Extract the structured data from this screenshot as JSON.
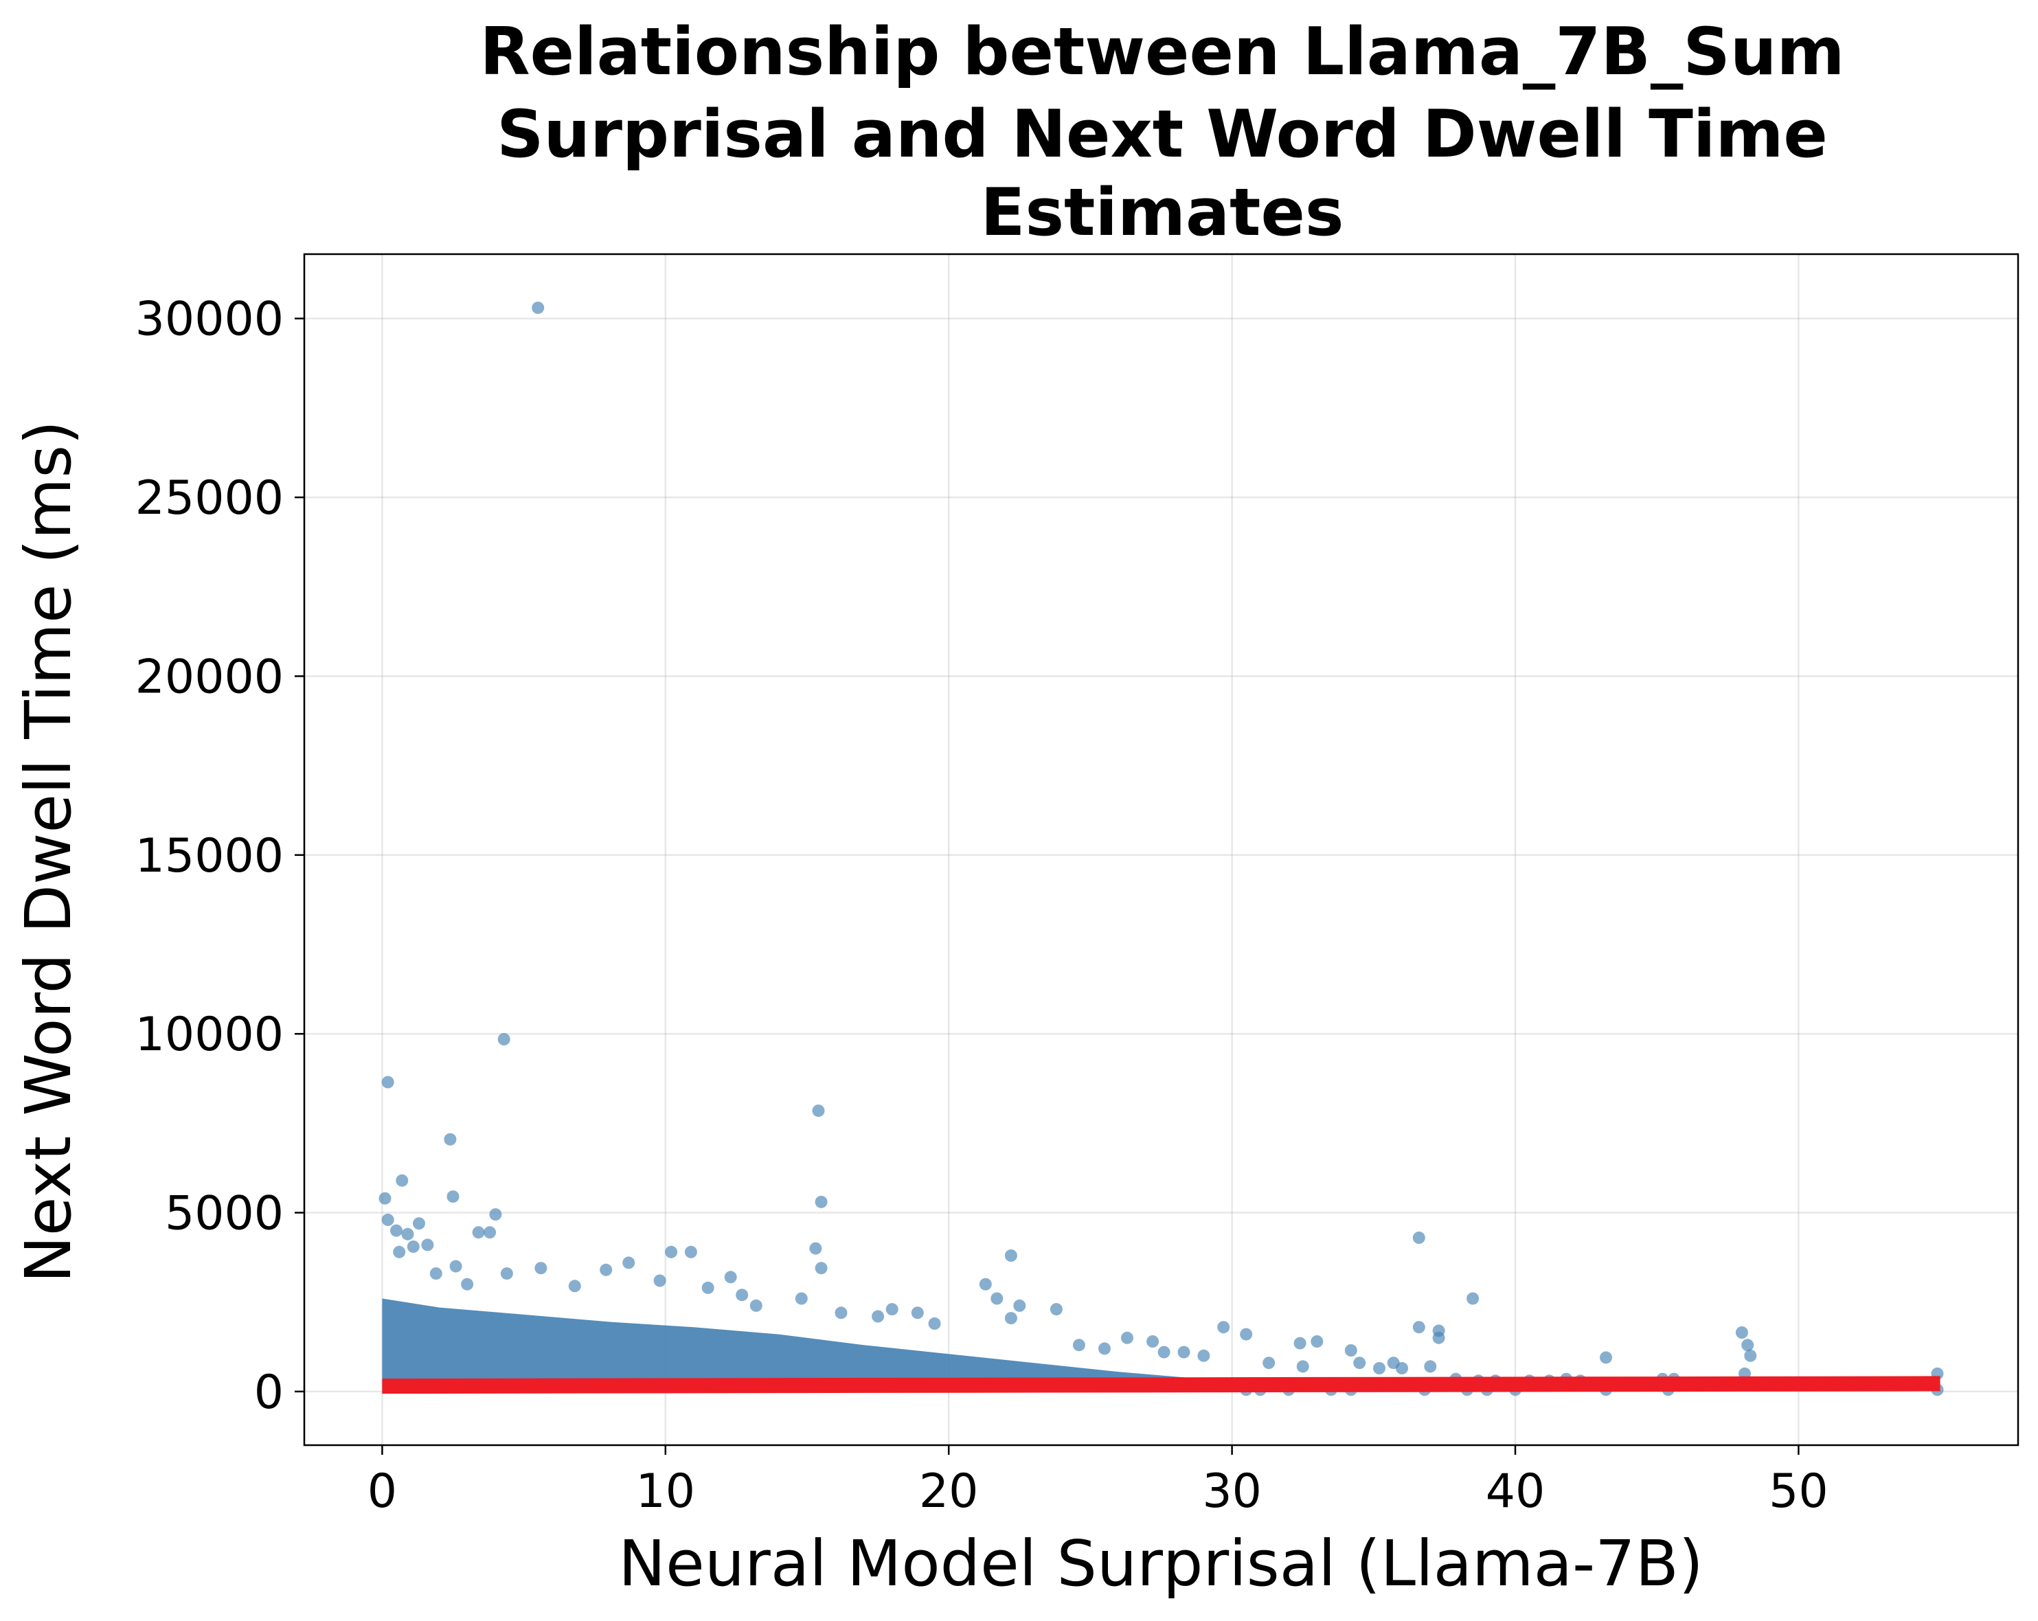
{
  "chart_data": {
    "type": "scatter",
    "title_lines": [
      "Relationship between Llama_7B_Sum",
      "Surprisal and Next Word Dwell Time",
      "Estimates"
    ],
    "xlabel": "Neural Model Surprisal (Llama-7B)",
    "ylabel": "Next Word Dwell Time (ms)",
    "xlim": [
      -2.75,
      57.75
    ],
    "ylim": [
      -1500,
      31800
    ],
    "x_ticks": [
      0,
      10,
      20,
      30,
      40,
      50
    ],
    "x_tick_labels": [
      "0",
      "10",
      "20",
      "30",
      "40",
      "50"
    ],
    "y_ticks": [
      0,
      5000,
      10000,
      15000,
      20000,
      25000,
      30000
    ],
    "y_tick_labels": [
      "0",
      "5000",
      "10000",
      "15000",
      "20000",
      "25000",
      "30000"
    ],
    "grid": true,
    "point_color": "#4682b4",
    "fit_line_color": "#ee1c25",
    "series": [
      {
        "kind": "scatter",
        "points": [
          [
            5.5,
            30300
          ],
          [
            4.3,
            9850
          ],
          [
            0.2,
            8650
          ],
          [
            15.4,
            7850
          ],
          [
            2.4,
            7050
          ],
          [
            0.7,
            5900
          ],
          [
            2.5,
            5450
          ],
          [
            0.1,
            5400
          ],
          [
            15.5,
            5300
          ],
          [
            4.0,
            4950
          ],
          [
            0.2,
            4800
          ],
          [
            1.3,
            4700
          ],
          [
            0.5,
            4500
          ],
          [
            3.8,
            4450
          ],
          [
            0.9,
            4400
          ],
          [
            36.6,
            4300
          ],
          [
            3.4,
            4450
          ],
          [
            15.3,
            4000
          ],
          [
            1.1,
            4050
          ],
          [
            1.6,
            4100
          ],
          [
            10.2,
            3900
          ],
          [
            10.9,
            3900
          ],
          [
            22.2,
            3800
          ],
          [
            0.6,
            3900
          ],
          [
            2.6,
            3500
          ],
          [
            8.7,
            3600
          ],
          [
            5.6,
            3450
          ],
          [
            4.4,
            3300
          ],
          [
            15.5,
            3450
          ],
          [
            12.3,
            3200
          ],
          [
            7.9,
            3400
          ],
          [
            21.3,
            3000
          ],
          [
            9.8,
            3100
          ],
          [
            38.5,
            2600
          ],
          [
            11.5,
            2900
          ],
          [
            14.8,
            2600
          ],
          [
            21.7,
            2600
          ],
          [
            22.5,
            2400
          ],
          [
            23.8,
            2300
          ],
          [
            18.0,
            2300
          ],
          [
            18.9,
            2200
          ],
          [
            22.2,
            2050
          ],
          [
            29.7,
            1800
          ],
          [
            30.5,
            1600
          ],
          [
            32.4,
            1350
          ],
          [
            33.0,
            1400
          ],
          [
            36.6,
            1800
          ],
          [
            37.3,
            1700
          ],
          [
            37.3,
            1500
          ],
          [
            48.0,
            1650
          ],
          [
            48.2,
            1300
          ],
          [
            48.3,
            1000
          ],
          [
            43.2,
            950
          ],
          [
            34.2,
            1150
          ],
          [
            35.7,
            800
          ],
          [
            26.3,
            1500
          ],
          [
            27.2,
            1400
          ],
          [
            28.3,
            1100
          ],
          [
            29.0,
            1000
          ],
          [
            31.3,
            800
          ],
          [
            32.5,
            700
          ],
          [
            34.5,
            800
          ],
          [
            35.2,
            650
          ],
          [
            36.0,
            650
          ],
          [
            37.0,
            700
          ],
          [
            37.9,
            350
          ],
          [
            38.7,
            300
          ],
          [
            39.3,
            300
          ],
          [
            40.5,
            300
          ],
          [
            41.2,
            300
          ],
          [
            41.8,
            350
          ],
          [
            42.3,
            300
          ],
          [
            45.2,
            350
          ],
          [
            45.6,
            350
          ],
          [
            48.1,
            500
          ],
          [
            48.4,
            200
          ],
          [
            54.9,
            500
          ],
          [
            54.9,
            50
          ],
          [
            45.4,
            50
          ],
          [
            43.2,
            50
          ],
          [
            40.0,
            50
          ],
          [
            39.0,
            50
          ],
          [
            38.3,
            50
          ],
          [
            36.8,
            50
          ],
          [
            34.2,
            50
          ],
          [
            33.5,
            50
          ],
          [
            32.0,
            50
          ],
          [
            31.0,
            50
          ],
          [
            30.5,
            50
          ],
          [
            25.5,
            1200
          ],
          [
            24.6,
            1300
          ],
          [
            27.6,
            1100
          ],
          [
            19.5,
            1900
          ],
          [
            17.5,
            2100
          ],
          [
            16.2,
            2200
          ],
          [
            13.2,
            2400
          ],
          [
            12.7,
            2700
          ],
          [
            6.8,
            2950
          ],
          [
            3.0,
            3000
          ],
          [
            1.9,
            3300
          ]
        ]
      },
      {
        "kind": "regression_line",
        "x": [
          0,
          55
        ],
        "y": [
          150,
          220
        ]
      }
    ]
  }
}
